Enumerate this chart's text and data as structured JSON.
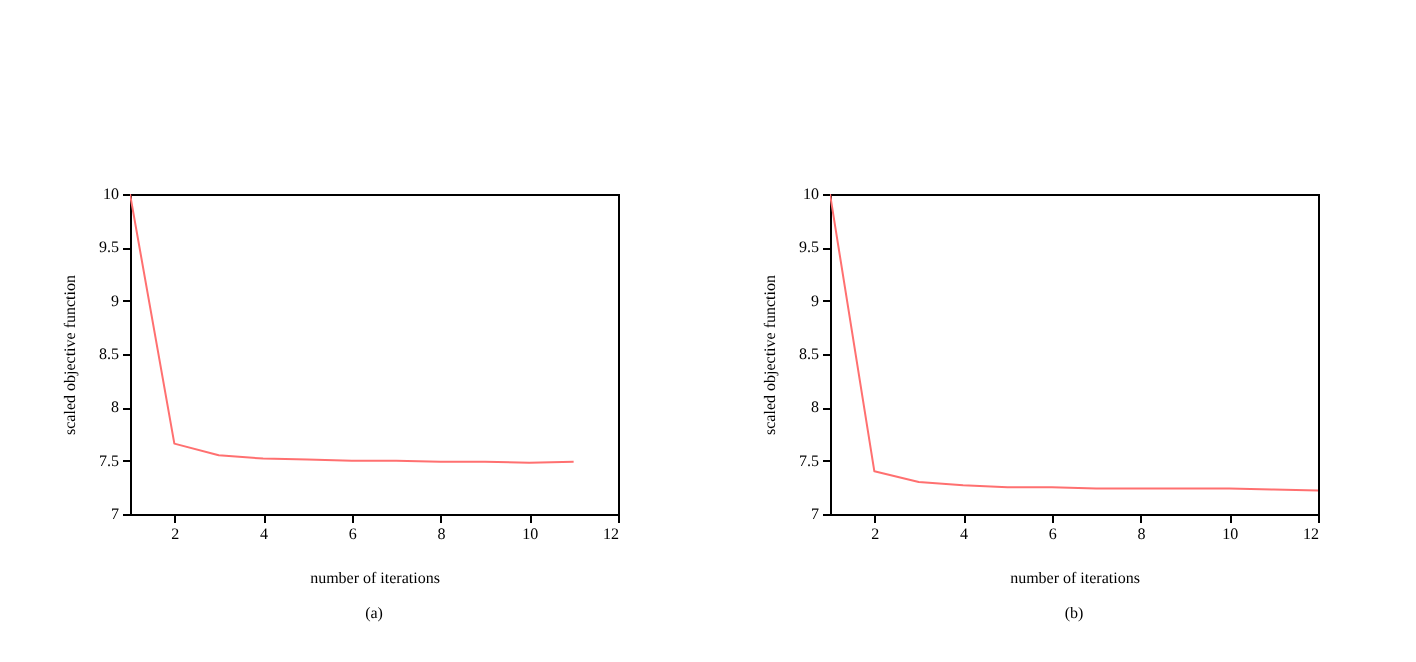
{
  "chart_data": [
    {
      "type": "line",
      "xlabel": "number of iterations",
      "ylabel": "scaled objective function",
      "annotations": [
        "(a)"
      ],
      "x": [
        1,
        2,
        3,
        4,
        5,
        6,
        7,
        8,
        9,
        10,
        11
      ],
      "series": [
        {
          "color": "#ff7070",
          "values": [
            10,
            7.66,
            7.55,
            7.52,
            7.51,
            7.5,
            7.5,
            7.49,
            7.49,
            7.48,
            7.49
          ]
        }
      ],
      "xlim": [
        1,
        12
      ],
      "xticks": [
        2,
        4,
        6,
        8,
        10,
        12
      ],
      "ylim": [
        7,
        10
      ],
      "yticks": [
        7,
        7.5,
        8,
        8.5,
        9,
        9.5,
        10
      ],
      "grid": false
    },
    {
      "type": "line",
      "xlabel": "number of iterations",
      "ylabel": "scaled objective function",
      "annotations": [
        "(b)"
      ],
      "x": [
        1,
        2,
        3,
        4,
        5,
        6,
        7,
        8,
        9,
        10,
        11,
        12
      ],
      "series": [
        {
          "color": "#ff7070",
          "values": [
            10,
            7.4,
            7.3,
            7.27,
            7.25,
            7.25,
            7.24,
            7.24,
            7.24,
            7.24,
            7.23,
            7.22
          ]
        }
      ],
      "xlim": [
        1,
        12
      ],
      "xticks": [
        2,
        4,
        6,
        8,
        10,
        12
      ],
      "ylim": [
        7,
        10
      ],
      "yticks": [
        7,
        7.5,
        8,
        8.5,
        9,
        9.5,
        10
      ],
      "grid": false
    }
  ]
}
